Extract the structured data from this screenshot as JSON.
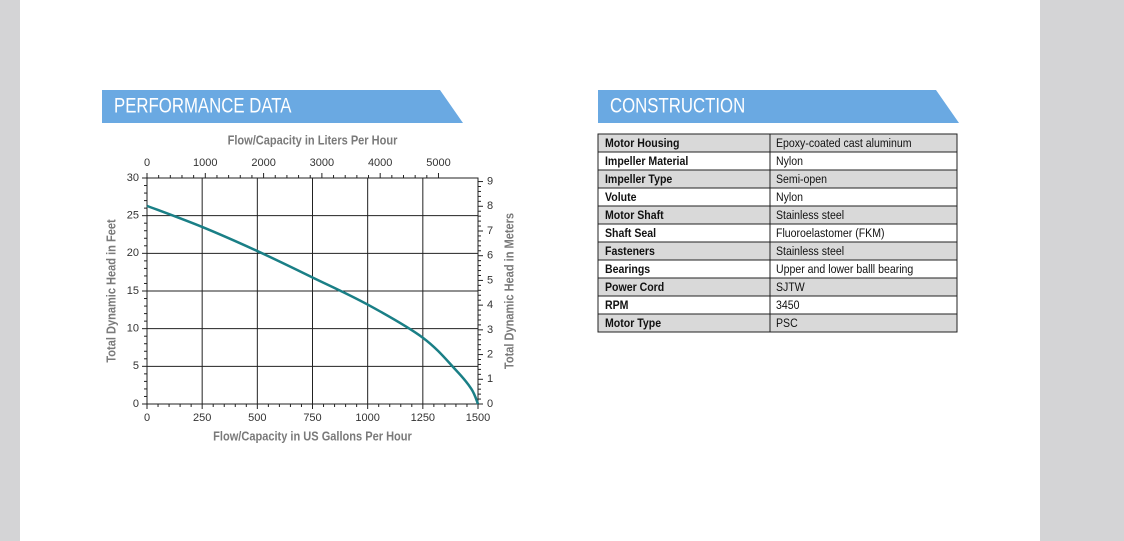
{
  "performance_title": "PERFORMANCE DATA",
  "chart_data": {
    "type": "line",
    "x_label": "Flow/Capacity in US Gallons Per Hour",
    "x2_label": "Flow/Capacity in Liters Per Hour",
    "y_label": "Total Dynamic Head in Feet",
    "y2_label": "Total Dynamic Head in Meters",
    "x": [
      0,
      250,
      500,
      750,
      1000,
      1250,
      1400,
      1470,
      1500
    ],
    "values": [
      26.3,
      23.5,
      20.3,
      16.8,
      13.2,
      8.8,
      4.5,
      2,
      0
    ],
    "color": "#1a7f86",
    "xlim": [
      0,
      1500
    ],
    "xticks": [
      0,
      250,
      500,
      750,
      1000,
      1250,
      1500
    ],
    "x2lim": [
      0,
      5678
    ],
    "x2ticks": [
      0,
      1000,
      2000,
      3000,
      4000,
      5000
    ],
    "ylim": [
      0,
      30
    ],
    "yticks": [
      0,
      5,
      10,
      15,
      20,
      25,
      30
    ],
    "y2lim": [
      0,
      9.144
    ],
    "y2ticks": [
      0,
      1,
      2,
      3,
      4,
      5,
      6,
      7,
      8,
      9
    ],
    "grid": true
  },
  "construction": {
    "title": "CONSTRUCTION",
    "rows": [
      [
        "Motor Housing",
        "Epoxy-coated cast aluminum"
      ],
      [
        "Impeller Material",
        "Nylon"
      ],
      [
        "Impeller Type",
        "Semi-open"
      ],
      [
        "Volute",
        "Nylon"
      ],
      [
        "Motor Shaft",
        "Stainless steel"
      ],
      [
        "Shaft Seal",
        "Fluoroelastomer (FKM)"
      ],
      [
        "Fasteners",
        "Stainless steel"
      ],
      [
        "Bearings",
        "Upper and lower balll bearing"
      ],
      [
        "Power Cord",
        "SJTW"
      ],
      [
        "RPM",
        "3450"
      ],
      [
        "Motor Type",
        "PSC"
      ]
    ]
  }
}
